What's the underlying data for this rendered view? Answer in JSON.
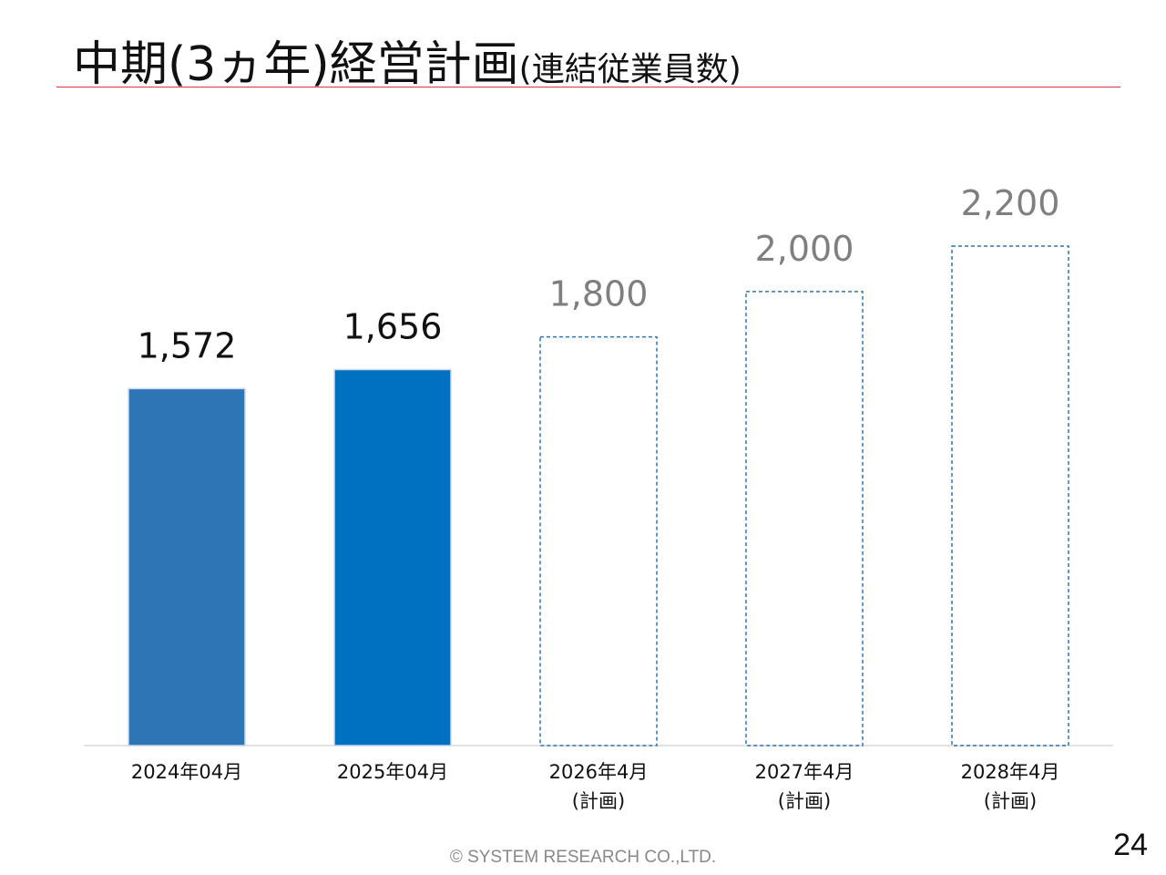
{
  "slide": {
    "title": "中期(3ヵ年)経営計画",
    "subtitle": "(連結従業員数)",
    "footer": "© SYSTEM RESEARCH CO.,LTD.",
    "page_number": "24"
  },
  "colors": {
    "accent_rule": "#d9363e",
    "bar_actual_1": "#2e75b6",
    "bar_actual_2": "#0070c0",
    "bar_plan_border": "#2e75b6",
    "label_actual": "#111111",
    "label_plan": "#7f7f7f"
  },
  "chart_data": {
    "type": "bar",
    "title": "",
    "xlabel": "",
    "ylabel": "",
    "ylim": [
      0,
      2200
    ],
    "grid": false,
    "legend": "none",
    "categories": [
      [
        "2024年04月"
      ],
      [
        "2025年04月"
      ],
      [
        "2026年4月",
        "(計画)"
      ],
      [
        "2027年4月",
        "(計画)"
      ],
      [
        "2028年4月",
        "(計画)"
      ]
    ],
    "values": [
      1572,
      1656,
      1800,
      2000,
      2200
    ],
    "data_labels": [
      "1,572",
      "1,656",
      "1,800",
      "2,000",
      "2,200"
    ],
    "styles": [
      "actual",
      "actual",
      "plan",
      "plan",
      "plan"
    ]
  }
}
